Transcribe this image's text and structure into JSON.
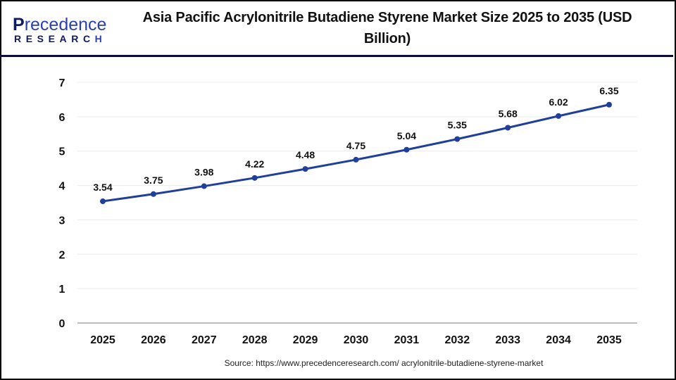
{
  "header": {
    "logo": {
      "word_top": "recedence",
      "initial": "P",
      "word_bottom": "RESEARC",
      "word_bottom_last": "H"
    },
    "title": "Asia Pacific Acrylonitrile Butadiene Styrene Market Size 2025 to 2035  (USD Billion)"
  },
  "footer": {
    "source": "Source: https://www.precedenceresearch.com/ acrylonitrile-butadiene-styrene-market"
  },
  "colors": {
    "line": "#1f3f9a",
    "marker": "#1f3f9a",
    "grid": "#ececec",
    "axis": "#bdbdbd",
    "rule": "#0b0b3b",
    "logo_dark": "#101a5c",
    "logo_blue": "#2a3fb5"
  },
  "chart_data": {
    "type": "line",
    "title": "Asia Pacific Acrylonitrile Butadiene Styrene Market Size 2025 to 2035  (USD Billion)",
    "xlabel": "",
    "ylabel": "",
    "categories": [
      "2025",
      "2026",
      "2027",
      "2028",
      "2029",
      "2030",
      "2031",
      "2032",
      "2033",
      "2034",
      "2035"
    ],
    "series": [
      {
        "name": "Market Size (USD Billion)",
        "values": [
          3.54,
          3.75,
          3.98,
          4.22,
          4.48,
          4.75,
          5.04,
          5.35,
          5.68,
          6.02,
          6.35
        ]
      }
    ],
    "data_labels": [
      "3.54",
      "3.75",
      "3.98",
      "4.22",
      "4.48",
      "4.75",
      "5.04",
      "5.35",
      "5.68",
      "6.02",
      "6.35"
    ],
    "yticks": [
      "0",
      "1",
      "2",
      "3",
      "4",
      "5",
      "6",
      "7"
    ],
    "ylim": [
      0,
      7
    ],
    "grid": true,
    "legend": "none"
  }
}
